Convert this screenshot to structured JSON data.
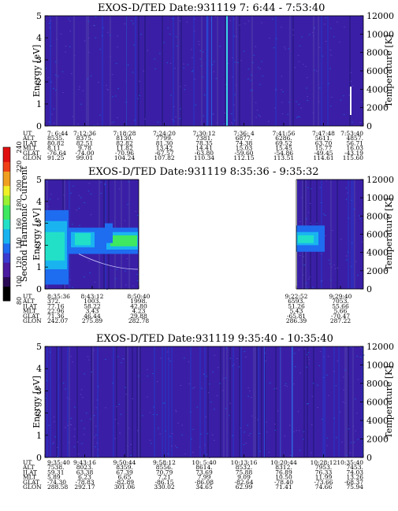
{
  "colors": {
    "background": "#3a1fa6",
    "frame": "#000000"
  },
  "colorbar": {
    "label": "Second Harmonic Current",
    "ticks": [
      "80",
      "100",
      "120",
      "140",
      "160",
      "180",
      "200",
      "220",
      "240"
    ]
  },
  "panels": [
    {
      "title_left": "EXOS-D/TED",
      "title_right": "Date:931119  7: 6:44 - 7:53:40",
      "ylabel_left": "Energy [eV]",
      "ylabel_right": "Temperature [K]",
      "orbit_labels": [
        "UT",
        "ALT",
        "ILAT",
        "MLT",
        "GLAT",
        "GLON"
      ],
      "orbit_columns": [
        {
          "UT": "7: 6:44",
          "ALT": "8535.",
          "ILAT": "80.82",
          "MLT": "8.11",
          "GLAT": "-76.64",
          "GLON": "91.25"
        },
        {
          "UT": "7:12:36",
          "ALT": "8375.",
          "ILAT": "82.51",
          "MLT": "9.78",
          "GLAT": "-74.00",
          "GLON": "99.01"
        },
        {
          "UT": "7:18:28",
          "ALT": "8130.",
          "ILAT": "82.82",
          "MLT": "11.82",
          "GLAT": "-70.96",
          "GLON": "104.24"
        },
        {
          "UT": "7:24:20",
          "ALT": "7799.",
          "ILAT": "81.30",
          "MLT": "13.42",
          "GLAT": "-67.57",
          "GLON": "107.82"
        },
        {
          "UT": "7:30:12",
          "ALT": "7381.",
          "ILAT": "78.35",
          "MLT": "14.41",
          "GLAT": "-63.80",
          "GLON": "110.34"
        },
        {
          "UT": "7:36: 4",
          "ALT": "6877.",
          "ILAT": "74.38",
          "MLT": "15.03",
          "GLAT": "-59.60",
          "GLON": "112.15"
        },
        {
          "UT": "7:41:56",
          "ALT": "6286.",
          "ILAT": "69.52",
          "MLT": "15.45",
          "GLAT": "-54.86",
          "GLON": "113.51"
        },
        {
          "UT": "7:47:48",
          "ALT": "5611.",
          "ILAT": "63.70",
          "MLT": "15.77",
          "GLAT": "-49.45",
          "GLON": "114.61"
        },
        {
          "UT": "7:53:40",
          "ALT": "4857.",
          "ILAT": "56.71",
          "MLT": "16.03",
          "GLAT": "-43.19",
          "GLON": "115.60"
        }
      ]
    },
    {
      "title_left": "EXOS-D/TED",
      "title_right": "Date:931119  8:35:36 - 9:35:32",
      "ylabel_left": "Energy [eV]",
      "ylabel_right": "Temperature [K]",
      "orbit_labels": [
        "UT",
        "ALT",
        "ILAT",
        "MLT",
        "GLAT",
        "GLON"
      ],
      "orbit_columns": [
        {
          "UT": "8:35:36",
          "ALT": "372.",
          "ILAT": "77.16",
          "MLT": "22.96",
          "GLAT": "71.36",
          "GLON": "242.07"
        },
        {
          "UT": "8:43:12",
          "ALT": "1003.",
          "ILAT": "58.22",
          "MLT": "3.43",
          "GLAT": "46.44",
          "GLON": "275.89"
        },
        {
          "UT": "8:50:40",
          "ALT": "1998.",
          "ILAT": "42.80",
          "MLT": "4.23",
          "GLAT": "29.88",
          "GLON": "282.78"
        },
        {
          "UT": "9:22:52",
          "ALT": "6593.",
          "ILAT": "51.26",
          "MLT": "5.43",
          "GLAT": "-65.81",
          "GLON": "286.39"
        },
        {
          "UT": "9:29:40",
          "ALT": "7053.",
          "ILAT": "55.66",
          "MLT": "5.66",
          "GLAT": "-70.47",
          "GLON": "287.22"
        }
      ]
    },
    {
      "title_left": "EXOS-D/TED",
      "title_right": "Date:931119  9:35:40 - 10:35:40",
      "ylabel_left": "Energy [eV]",
      "ylabel_right": "Temperature [K]",
      "orbit_labels": [
        "UT",
        "ALT",
        "ILAT",
        "MLT",
        "GLAT",
        "GLON"
      ],
      "orbit_columns": [
        {
          "UT": "9:35:40",
          "ALT": "7538.",
          "ILAT": "59.31",
          "MLT": "5.89",
          "GLAT": "-74.30",
          "GLON": "288.58"
        },
        {
          "UT": "9:43:16",
          "ALT": "8023.",
          "ILAT": "63.38",
          "MLT": "6.23",
          "GLAT": "-78.83",
          "GLON": "292.17"
        },
        {
          "UT": "9:50:44",
          "ALT": "8359.",
          "ILAT": "67.39",
          "MLT": "6.65",
          "GLAT": "-82.89",
          "GLON": "301.06"
        },
        {
          "UT": "9:58:12",
          "ALT": "8556.",
          "ILAT": "70.79",
          "MLT": "7.21",
          "GLAT": "-86.15",
          "GLON": "330.02"
        },
        {
          "UT": "10: 5:40",
          "ALT": "8614.",
          "ILAT": "73.69",
          "MLT": "7.99",
          "GLAT": "-86.08",
          "GLON": "34.65"
        },
        {
          "UT": "10:13:16",
          "ALT": "8532.",
          "ILAT": "75.88",
          "MLT": "9.09",
          "GLAT": "-82.64",
          "GLON": "62.99"
        },
        {
          "UT": "10:20:44",
          "ALT": "8312.",
          "ILAT": "76.89",
          "MLT": "10.50",
          "GLAT": "-78.40",
          "GLON": "71.41"
        },
        {
          "UT": "10:28:12",
          "ALT": "7953.",
          "ILAT": "76.33",
          "MLT": "11.99",
          "GLAT": "-73.66",
          "GLON": "74.66"
        },
        {
          "UT": "10:35:40",
          "ALT": "7453.",
          "ILAT": "74.03",
          "MLT": "13.26",
          "GLAT": "-68.37",
          "GLON": "75.94"
        }
      ]
    }
  ],
  "chart_data": [
    {
      "type": "heatmap",
      "title": "EXOS-D/TED  Date:931119  7: 6:44 - 7:53:40",
      "xlabel": "",
      "ylabel": "Energy [eV]",
      "ylabel_right": "Temperature [K]",
      "ylim": [
        0,
        5
      ],
      "ylim_right": [
        0,
        12000
      ],
      "yticks": [
        0,
        1,
        2,
        3,
        4,
        5
      ],
      "yticks_right": [
        0,
        2000,
        4000,
        6000,
        8000,
        10000,
        12000
      ],
      "x": [
        "7: 6:44",
        "7:12:36",
        "7:18:28",
        "7:24:20",
        "7:30:12",
        "7:36: 4",
        "7:41:56",
        "7:47:48",
        "7:53:40"
      ],
      "colorbar_range": [
        80,
        240
      ]
    },
    {
      "type": "heatmap",
      "title": "EXOS-D/TED  Date:931119  8:35:36 - 9:35:32",
      "xlabel": "",
      "ylabel": "Energy [eV]",
      "ylabel_right": "Temperature [K]",
      "ylim": [
        0,
        5
      ],
      "ylim_right": [
        0,
        12000
      ],
      "yticks": [
        0,
        1,
        2,
        3,
        4,
        5
      ],
      "yticks_right": [
        0,
        2000,
        4000,
        6000,
        8000,
        10000,
        12000
      ],
      "x": [
        "8:35:36",
        "8:43:12",
        "8:50:40",
        "9:22:52",
        "9:29:40"
      ],
      "colorbar_range": [
        80,
        240
      ]
    },
    {
      "type": "heatmap",
      "title": "EXOS-D/TED  Date:931119  9:35:40 - 10:35:40",
      "xlabel": "",
      "ylabel": "Energy [eV]",
      "ylabel_right": "Temperature [K]",
      "ylim": [
        0,
        5
      ],
      "ylim_right": [
        0,
        12000
      ],
      "yticks": [
        0,
        1,
        2,
        3,
        4,
        5
      ],
      "yticks_right": [
        0,
        2000,
        4000,
        6000,
        8000,
        10000,
        12000
      ],
      "x": [
        "9:35:40",
        "9:43:16",
        "9:50:44",
        "9:58:12",
        "10: 5:40",
        "10:13:16",
        "10:20:44",
        "10:28:12",
        "10:35:40"
      ],
      "colorbar_range": [
        80,
        240
      ]
    }
  ]
}
